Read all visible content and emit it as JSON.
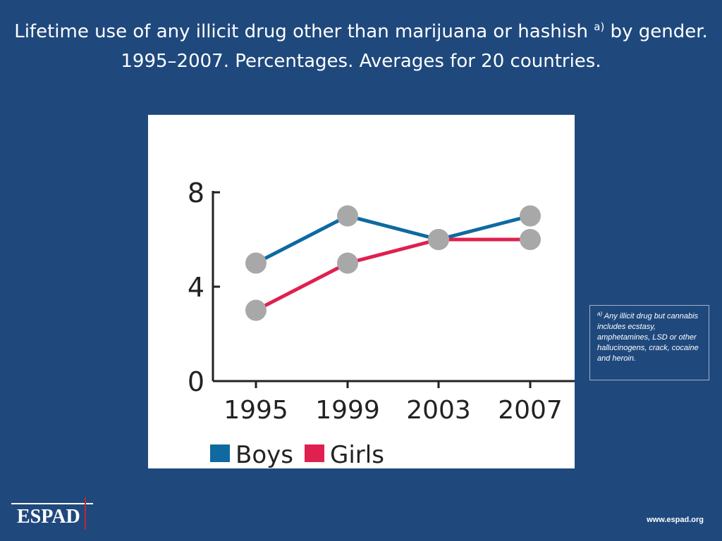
{
  "slide": {
    "title_main": "Lifetime use of any illicit drug other than marijuana or hashish ",
    "title_sup": "a)",
    "title_rest": " by gender. 1995–2007. Percentages. Averages for 20 countries."
  },
  "footnote": {
    "marker": "a)",
    "text": " Any illicit drug but cannabis includes ecstasy, amphetamines, LSD or other hallucinogens, crack, cocaine and heroin."
  },
  "logo": {
    "text": "ESPAD"
  },
  "url": "www.espad.org",
  "colors": {
    "background": "#1f497d",
    "boys": "#0e6aa0",
    "girls": "#e0204f",
    "marker": "#a8a8a8"
  },
  "chart_data": {
    "type": "line",
    "title": "",
    "xlabel": "",
    "ylabel": "",
    "categories": [
      "1995",
      "1999",
      "2003",
      "2007"
    ],
    "ylim": [
      0,
      8
    ],
    "yticks": [
      0,
      4,
      8
    ],
    "grid": false,
    "legend": "bottom-left",
    "series": [
      {
        "name": "Boys",
        "color": "#0e6aa0",
        "values": [
          5,
          7,
          6,
          7
        ]
      },
      {
        "name": "Girls",
        "color": "#e0204f",
        "values": [
          3,
          5,
          6,
          6
        ]
      }
    ]
  }
}
